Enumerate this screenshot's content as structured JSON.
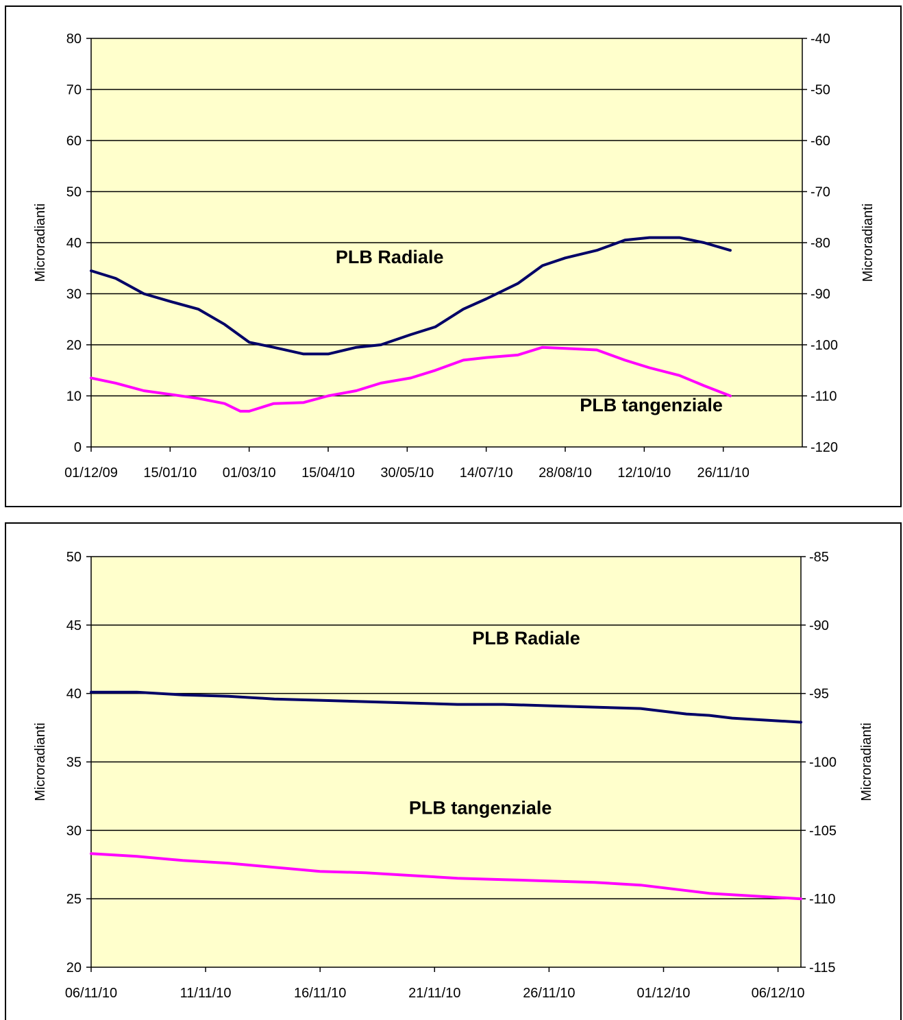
{
  "chart_data": [
    {
      "type": "line",
      "x_type": "date",
      "x_ticks": [
        "01/12/09",
        "15/01/10",
        "01/03/10",
        "15/04/10",
        "30/05/10",
        "14/07/10",
        "28/08/10",
        "12/10/10",
        "26/11/10"
      ],
      "x_range": [
        "01/12/09",
        "10/01/11"
      ],
      "ylim_left": [
        0,
        80
      ],
      "y_ticks_left": [
        "0",
        "10",
        "20",
        "30",
        "40",
        "50",
        "60",
        "70",
        "80"
      ],
      "ylim_right": [
        -120,
        -40
      ],
      "y_ticks_right": [
        "-120",
        "-110",
        "-100",
        "-90",
        "-80",
        "-70",
        "-60",
        "-50",
        "-40"
      ],
      "ylabel_left": "Microradianti",
      "ylabel_right": "Microradianti",
      "background": "#ffffcc",
      "grid": true,
      "annotations": [
        {
          "text": "PLB Radiale",
          "x": "20/05/10",
          "y": 36
        },
        {
          "text": "PLB tangenziale",
          "x": "16/10/10",
          "y": 7
        }
      ],
      "series": [
        {
          "color": "#000066",
          "x": [
            "01/12/09",
            "15/12/09",
            "31/12/09",
            "15/01/10",
            "31/01/10",
            "15/02/10",
            "01/03/10",
            "15/03/10",
            "01/04/10",
            "15/04/10",
            "01/05/10",
            "15/05/10",
            "01/06/10",
            "15/06/10",
            "01/07/10",
            "14/07/10",
            "01/08/10",
            "15/08/10",
            "28/08/10",
            "15/09/10",
            "01/10/10",
            "15/10/10",
            "01/11/10",
            "15/11/10",
            "30/11/10"
          ],
          "values": [
            34.5,
            33,
            30,
            28.5,
            27,
            24,
            20.5,
            19.5,
            18.2,
            18.2,
            19.5,
            20,
            22,
            23.5,
            27,
            29,
            32,
            35.5,
            37,
            38.5,
            40.5,
            41,
            41,
            40,
            38.5
          ]
        },
        {
          "color": "#ff00ff",
          "x": [
            "01/12/09",
            "15/12/09",
            "31/12/09",
            "15/01/10",
            "31/01/10",
            "15/02/10",
            "24/02/10",
            "01/03/10",
            "15/03/10",
            "01/04/10",
            "15/04/10",
            "01/05/10",
            "15/05/10",
            "01/06/10",
            "15/06/10",
            "01/07/10",
            "14/07/10",
            "01/08/10",
            "15/08/10",
            "28/08/10",
            "15/09/10",
            "01/10/10",
            "15/10/10",
            "01/11/10",
            "15/11/10",
            "30/11/10"
          ],
          "values": [
            13.5,
            12.5,
            11,
            10.3,
            9.5,
            8.5,
            7,
            7,
            8.5,
            8.7,
            10,
            11,
            12.5,
            13.5,
            15,
            17,
            17.5,
            18,
            19.5,
            19.3,
            19,
            17,
            15.5,
            14,
            12,
            10
          ]
        }
      ]
    },
    {
      "type": "line",
      "x_type": "date",
      "x_ticks": [
        "06/11/10",
        "11/11/10",
        "16/11/10",
        "21/11/10",
        "26/11/10",
        "01/12/10",
        "06/12/10"
      ],
      "x_range": [
        "06/11/10",
        "07/12/10"
      ],
      "ylim_left": [
        20,
        50
      ],
      "y_ticks_left": [
        "20",
        "25",
        "30",
        "35",
        "40",
        "45",
        "50"
      ],
      "ylim_right": [
        -115,
        -85
      ],
      "y_ticks_right": [
        "-115",
        "-110",
        "-105",
        "-100",
        "-95",
        "-90",
        "-85"
      ],
      "ylabel_left": "Microradianti",
      "ylabel_right": "Microradianti",
      "background": "#ffffcc",
      "grid": true,
      "annotations": [
        {
          "text": "PLB Radiale",
          "x": "25/11/10",
          "y": 43.6
        },
        {
          "text": "PLB tangenziale",
          "x": "23/11/10",
          "y": 31.2
        }
      ],
      "series": [
        {
          "color": "#000066",
          "x": [
            "06/11/10",
            "08/11/10",
            "10/11/10",
            "12/11/10",
            "14/11/10",
            "16/11/10",
            "18/11/10",
            "20/11/10",
            "22/11/10",
            "24/11/10",
            "26/11/10",
            "28/11/10",
            "30/11/10",
            "02/12/10",
            "03/12/10",
            "04/12/10",
            "05/12/10",
            "06/12/10",
            "07/12/10"
          ],
          "values": [
            40.1,
            40.1,
            39.9,
            39.8,
            39.6,
            39.5,
            39.4,
            39.3,
            39.2,
            39.2,
            39.1,
            39,
            38.9,
            38.5,
            38.4,
            38.2,
            38.1,
            38,
            37.9
          ]
        },
        {
          "color": "#ff00ff",
          "x": [
            "06/11/10",
            "08/11/10",
            "10/11/10",
            "12/11/10",
            "14/11/10",
            "16/11/10",
            "18/11/10",
            "20/11/10",
            "22/11/10",
            "24/11/10",
            "26/11/10",
            "28/11/10",
            "30/11/10",
            "02/12/10",
            "03/12/10",
            "04/12/10",
            "05/12/10",
            "06/12/10",
            "07/12/10"
          ],
          "values": [
            28.3,
            28.1,
            27.8,
            27.6,
            27.3,
            27,
            26.9,
            26.7,
            26.5,
            26.4,
            26.3,
            26.2,
            26,
            25.6,
            25.4,
            25.3,
            25.2,
            25.1,
            25
          ]
        }
      ]
    }
  ]
}
